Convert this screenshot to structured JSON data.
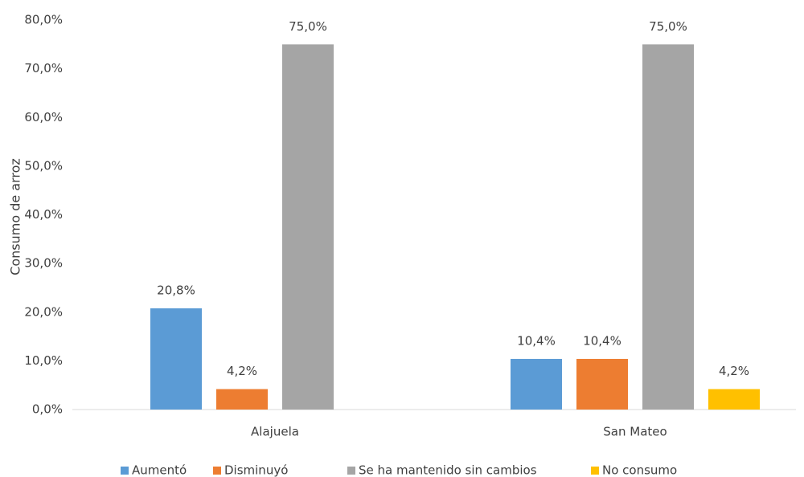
{
  "chart_data": {
    "type": "bar",
    "y_label": "Consumo de arroz",
    "categories": [
      "Alajuela",
      "San Mateo"
    ],
    "series": [
      {
        "name": "Aumentó",
        "color": "#5b9bd5",
        "values": [
          20.8,
          10.4
        ],
        "value_labels": [
          "20,8%",
          "10,4%"
        ]
      },
      {
        "name": "Disminuyó",
        "color": "#ed7d31",
        "values": [
          4.2,
          10.4
        ],
        "value_labels": [
          "4,2%",
          "10,4%"
        ]
      },
      {
        "name": "Se ha mantenido sin cambios",
        "color": "#a5a5a5",
        "values": [
          75.0,
          75.0
        ],
        "value_labels": [
          "75,0%",
          "75,0%"
        ]
      },
      {
        "name": "No consumo",
        "color": "#ffc000",
        "values": [
          null,
          4.2
        ],
        "value_labels": [
          null,
          "4,2%"
        ]
      }
    ],
    "ylim": [
      0,
      80
    ],
    "yticks": [
      {
        "value": 0,
        "label": "0,0%"
      },
      {
        "value": 10,
        "label": "10,0%"
      },
      {
        "value": 20,
        "label": "20,0%"
      },
      {
        "value": 30,
        "label": "30,0%"
      },
      {
        "value": 40,
        "label": "40,0%"
      },
      {
        "value": 50,
        "label": "50,0%"
      },
      {
        "value": 60,
        "label": "60,0%"
      },
      {
        "value": 70,
        "label": "70,0%"
      },
      {
        "value": 80,
        "label": "80,0%"
      }
    ],
    "grid": false,
    "legend": "bottom"
  }
}
